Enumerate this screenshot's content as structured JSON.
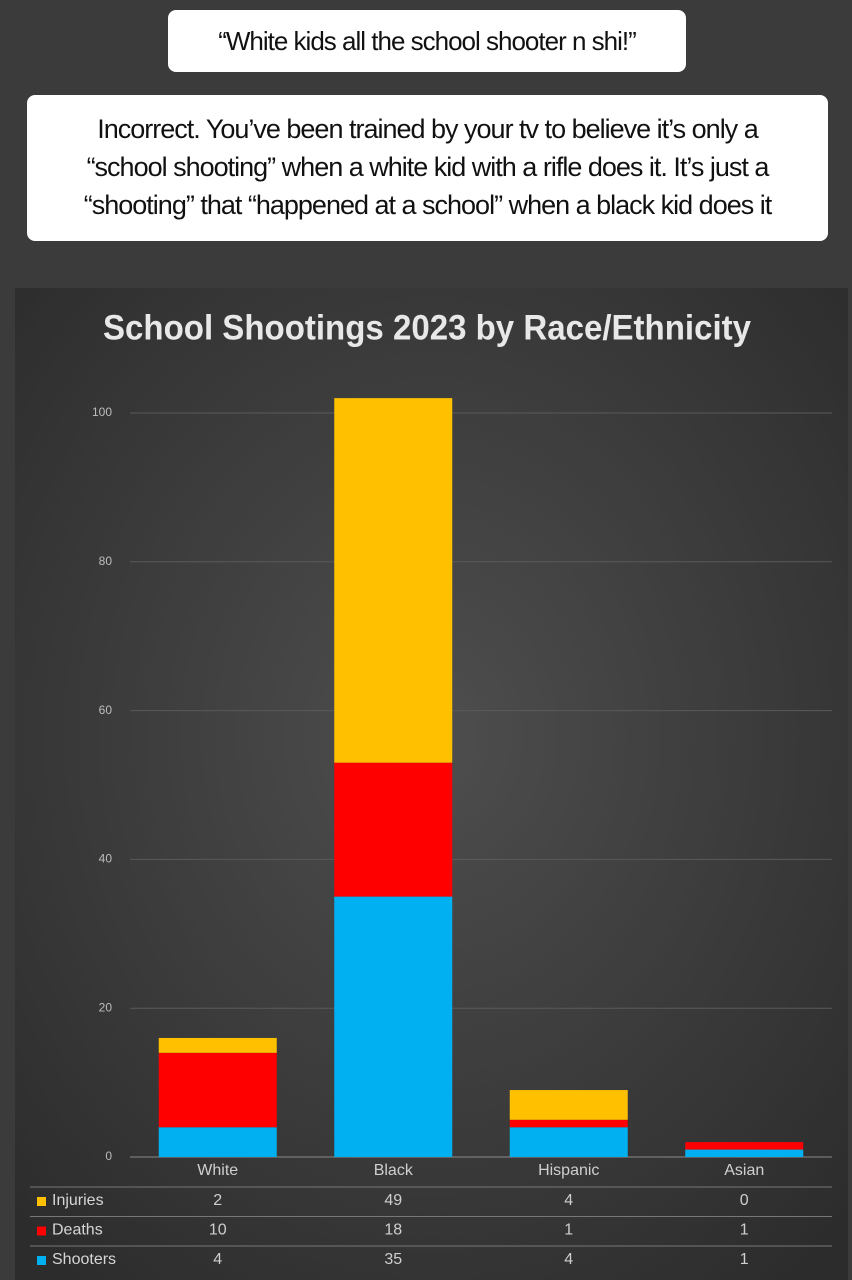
{
  "captions": {
    "first": "“White kids all the school shooter n shi!”",
    "second": [
      "Incorrect. You’ve been trained by your tv to believe it’s only a",
      "“school shooting” when a white kid with a rifle does it. It’s just a",
      "“shooting” that “happened at a school” when a black kid does it"
    ]
  },
  "chart_data": {
    "type": "stacked_bar",
    "title": "School Shootings 2023 by Race/Ethnicity",
    "categories": [
      "White",
      "Black",
      "Hispanic",
      "Asian"
    ],
    "series": [
      {
        "name": "Shooters",
        "color": "#00b0f0",
        "values": [
          4,
          35,
          4,
          1
        ]
      },
      {
        "name": "Deaths",
        "color": "#ff0000",
        "values": [
          10,
          18,
          1,
          1
        ]
      },
      {
        "name": "Injuries",
        "color": "#ffc000",
        "values": [
          2,
          49,
          4,
          0
        ]
      }
    ],
    "ylim": [
      0,
      105
    ],
    "yticks": [
      0,
      20,
      40,
      60,
      80,
      100
    ],
    "grid": true,
    "legend": "data-table"
  }
}
